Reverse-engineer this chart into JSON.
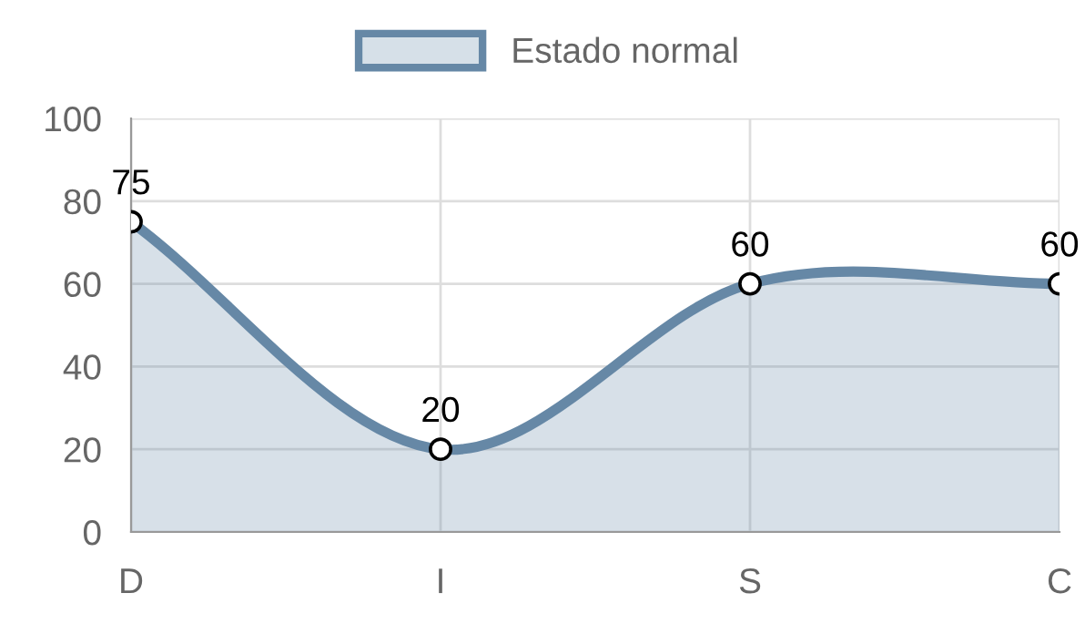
{
  "chart_data": {
    "type": "area",
    "categories": [
      "D",
      "I",
      "S",
      "C"
    ],
    "series": [
      {
        "name": "Estado normal",
        "color": "#6688a6",
        "values": [
          75,
          20,
          60,
          60
        ]
      }
    ],
    "ylim": [
      0,
      100
    ],
    "yticks": [
      0,
      20,
      40,
      60,
      80,
      100
    ],
    "grid": true,
    "legend": "top",
    "marker": "circle",
    "data_labels": true
  }
}
